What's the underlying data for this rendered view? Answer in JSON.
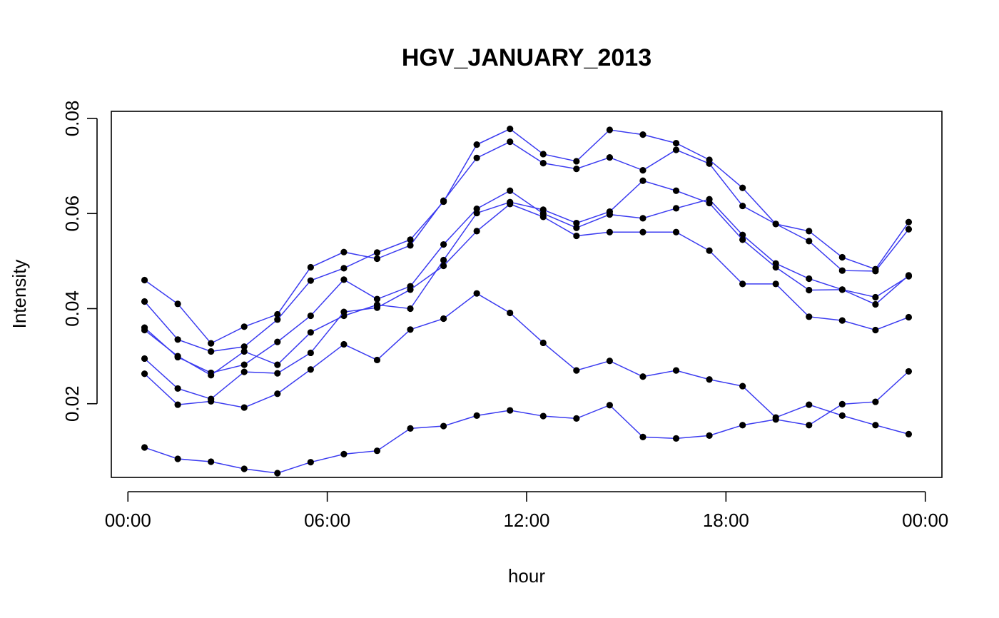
{
  "chart_data": {
    "type": "line",
    "title": "HGV_JANUARY_2013",
    "xlabel": "hour",
    "ylabel": "Intensity",
    "x_unit": "hours",
    "xlim": [
      -0.5,
      24.5
    ],
    "ylim": [
      0.0045,
      0.0815
    ],
    "x_ticks": [
      {
        "value": 0,
        "label": "00:00"
      },
      {
        "value": 6,
        "label": "06:00"
      },
      {
        "value": 12,
        "label": "12:00"
      },
      {
        "value": 18,
        "label": "18:00"
      },
      {
        "value": 24,
        "label": "00:00"
      }
    ],
    "y_ticks": [
      {
        "value": 0.02,
        "label": "0.02"
      },
      {
        "value": 0.04,
        "label": "0.04"
      },
      {
        "value": 0.06,
        "label": "0.06"
      },
      {
        "value": 0.08,
        "label": "0.08"
      }
    ],
    "line_color": "#3b3bf0",
    "marker_color": "#000000",
    "x": [
      0.5,
      1.5,
      2.5,
      3.5,
      4.5,
      5.5,
      6.5,
      7.5,
      8.5,
      9.5,
      10.5,
      11.5,
      12.5,
      13.5,
      14.5,
      15.5,
      16.5,
      17.5,
      18.5,
      19.5,
      20.5,
      21.5,
      22.5,
      23.5
    ],
    "series": [
      {
        "values": [
          0.046,
          0.041,
          0.0327,
          0.0362,
          0.0388,
          0.0487,
          0.0519,
          0.0505,
          0.0533,
          0.0627,
          0.0717,
          0.0751,
          0.0706,
          0.0694,
          0.0718,
          0.0691,
          0.0734,
          0.0705,
          0.0616,
          0.0578,
          0.0542,
          0.048,
          0.0479,
          0.0567
        ]
      },
      {
        "values": [
          0.0415,
          0.0335,
          0.031,
          0.032,
          0.0377,
          0.0459,
          0.0485,
          0.0518,
          0.0545,
          0.0625,
          0.0745,
          0.0778,
          0.0725,
          0.071,
          0.0776,
          0.0766,
          0.0748,
          0.0713,
          0.0654,
          0.0578,
          0.0563,
          0.0508,
          0.0483,
          0.0582
        ]
      },
      {
        "values": [
          0.036,
          0.0298,
          0.0265,
          0.0282,
          0.033,
          0.0385,
          0.0461,
          0.042,
          0.0447,
          0.0535,
          0.061,
          0.0648,
          0.06,
          0.057,
          0.0598,
          0.059,
          0.0611,
          0.063,
          0.0555,
          0.0495,
          0.0463,
          0.044,
          0.0424,
          0.0468
        ]
      },
      {
        "values": [
          0.0355,
          0.03,
          0.026,
          0.031,
          0.0282,
          0.035,
          0.0385,
          0.0408,
          0.04,
          0.0502,
          0.0601,
          0.0624,
          0.0608,
          0.058,
          0.0604,
          0.0669,
          0.0648,
          0.0622,
          0.0545,
          0.0487,
          0.0439,
          0.044,
          0.0409,
          0.047
        ]
      },
      {
        "values": [
          0.0295,
          0.0232,
          0.021,
          0.0267,
          0.0264,
          0.0307,
          0.0393,
          0.0402,
          0.044,
          0.049,
          0.0563,
          0.062,
          0.0593,
          0.0553,
          0.0561,
          0.0561,
          0.0561,
          0.0522,
          0.0452,
          0.0452,
          0.0383,
          0.0375,
          0.0355,
          0.0382
        ]
      },
      {
        "values": [
          0.0263,
          0.0198,
          0.0205,
          0.0192,
          0.0221,
          0.0272,
          0.0325,
          0.0292,
          0.0356,
          0.0379,
          0.0432,
          0.0391,
          0.0328,
          0.027,
          0.029,
          0.0257,
          0.027,
          0.0251,
          0.0237,
          0.0171,
          0.0198,
          0.0175,
          0.0155,
          0.0136
        ]
      },
      {
        "values": [
          0.0108,
          0.0084,
          0.0078,
          0.0063,
          0.0054,
          0.0077,
          0.0094,
          0.0101,
          0.0148,
          0.0153,
          0.0175,
          0.0186,
          0.0174,
          0.0169,
          0.0197,
          0.013,
          0.0127,
          0.0133,
          0.0155,
          0.0167,
          0.0155,
          0.0199,
          0.0204,
          0.0268
        ]
      }
    ]
  }
}
